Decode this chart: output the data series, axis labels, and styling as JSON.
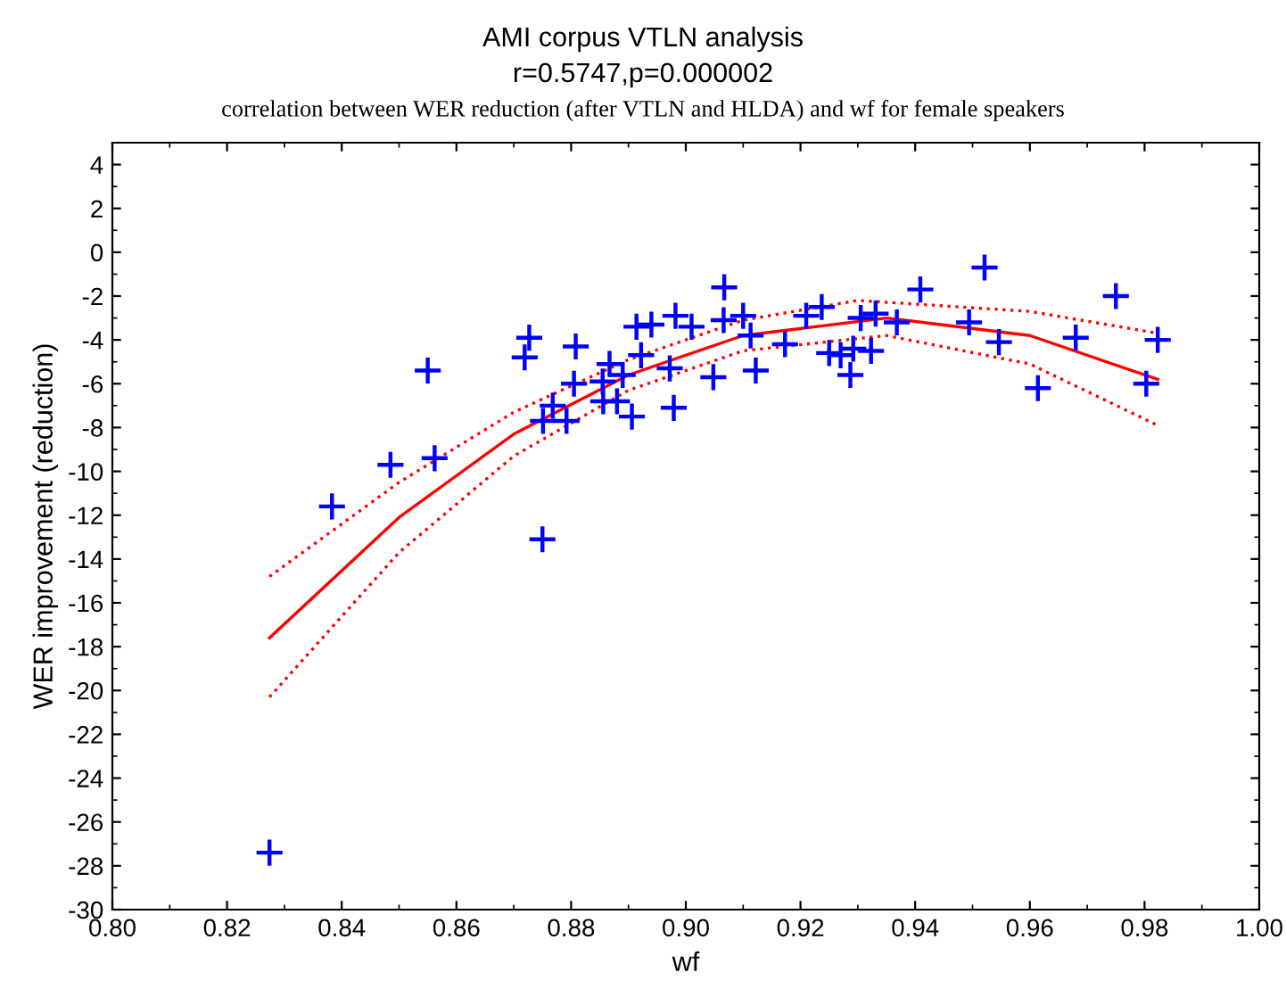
{
  "chart_data": {
    "type": "scatter",
    "title": "AMI corpus VTLN analysis",
    "subtitle": "r=0.5747,p=0.000002",
    "annotations": [
      "correlation between WER reduction (after VTLN and HLDA) and wf for female speakers"
    ],
    "xlabel": "wf",
    "ylabel": "WER improvement (reduction)",
    "xlim": [
      0.8,
      1.0
    ],
    "xticks": [
      {
        "value": 0.8,
        "label": "0.80"
      },
      {
        "value": 0.82,
        "label": "0.82"
      },
      {
        "value": 0.84,
        "label": "0.84"
      },
      {
        "value": 0.86,
        "label": "0.86"
      },
      {
        "value": 0.88,
        "label": "0.88"
      },
      {
        "value": 0.9,
        "label": "0.90"
      },
      {
        "value": 0.92,
        "label": "0.92"
      },
      {
        "value": 0.94,
        "label": "0.94"
      },
      {
        "value": 0.96,
        "label": "0.96"
      },
      {
        "value": 0.98,
        "label": "0.98"
      },
      {
        "value": 1.0,
        "label": "1.00"
      }
    ],
    "ylim": [
      -30,
      5
    ],
    "yticks": [
      -30,
      -28,
      -26,
      -24,
      -22,
      -20,
      -18,
      -16,
      -14,
      -12,
      -10,
      -8,
      -6,
      -4,
      -2,
      0,
      2,
      4
    ],
    "grid": false,
    "series": [
      {
        "marker": "cross",
        "color": "#0000ff",
        "x": [
          0.8274,
          0.8383,
          0.8485,
          0.855,
          0.8562,
          0.8719,
          0.8727,
          0.875,
          0.8751,
          0.8768,
          0.8792,
          0.8805,
          0.8808,
          0.8855,
          0.8856,
          0.8867,
          0.888,
          0.889,
          0.8906,
          0.8914,
          0.8922,
          0.894,
          0.8972,
          0.8979,
          0.8982,
          0.901,
          0.9048,
          0.9066,
          0.9067,
          0.91,
          0.9113,
          0.9122,
          0.9173,
          0.921,
          0.9237,
          0.925,
          0.927,
          0.9287,
          0.9292,
          0.9305,
          0.9323,
          0.9331,
          0.9368,
          0.9409,
          0.9494,
          0.9521,
          0.9546,
          0.9614,
          0.968,
          0.975,
          0.9803,
          0.9823
        ],
        "values": [
          -27.4,
          -11.6,
          -9.7,
          -5.4,
          -9.4,
          -4.8,
          -3.9,
          -13.1,
          -7.7,
          -7.0,
          -7.7,
          -6.0,
          -4.3,
          -5.9,
          -6.8,
          -5.1,
          -6.8,
          -5.6,
          -7.5,
          -3.4,
          -4.7,
          -3.3,
          -5.3,
          -7.1,
          -2.9,
          -3.4,
          -5.7,
          -3.1,
          -1.6,
          -2.9,
          -3.8,
          -5.4,
          -4.2,
          -2.9,
          -2.5,
          -4.6,
          -4.7,
          -5.6,
          -4.4,
          -3.0,
          -4.5,
          -2.8,
          -3.2,
          -1.7,
          -3.2,
          -0.7,
          -4.1,
          -6.2,
          -3.9,
          -2.0,
          -6.0,
          -4.0
        ]
      },
      {
        "type": "line",
        "line_style": "solid",
        "color": "#ff0000",
        "x": [
          0.8274,
          0.85,
          0.87,
          0.89,
          0.91,
          0.935,
          0.96,
          0.9823
        ],
        "values": [
          -17.6,
          -12.1,
          -8.3,
          -5.6,
          -3.8,
          -3.0,
          -3.8,
          -5.8
        ]
      },
      {
        "type": "line",
        "line_style": "dotted",
        "color": "#ff0000",
        "x": [
          0.8274,
          0.85,
          0.87,
          0.89,
          0.91,
          0.93,
          0.96,
          0.9823
        ],
        "values": [
          -14.8,
          -10.5,
          -7.3,
          -4.9,
          -3.1,
          -2.2,
          -2.7,
          -3.7
        ]
      },
      {
        "type": "line",
        "line_style": "dotted",
        "color": "#ff0000",
        "x": [
          0.8274,
          0.85,
          0.87,
          0.89,
          0.91,
          0.935,
          0.96,
          0.9823
        ],
        "values": [
          -20.3,
          -13.7,
          -9.3,
          -6.3,
          -4.5,
          -3.8,
          -5.1,
          -7.9
        ]
      }
    ]
  }
}
